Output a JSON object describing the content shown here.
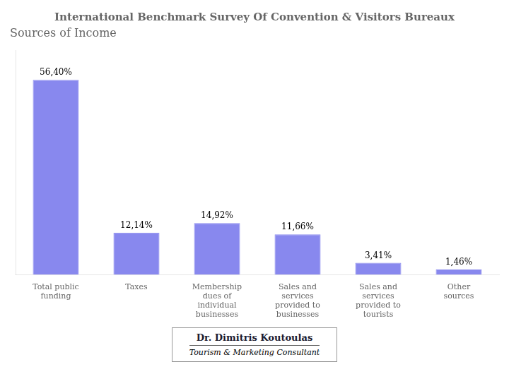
{
  "chart_data": {
    "type": "bar",
    "title": "International Benchmark Survey Of Convention & Visitors Bureaux",
    "subtitle": "Sources of Income",
    "categories": [
      "Total public\nfunding",
      "Taxes",
      "Membership\ndues of\nindividual\nbusinesses",
      "Sales and\nservices\nprovided to\nbusinesses",
      "Sales and\nservices\nprovided to\ntourists",
      "Other\nsources"
    ],
    "values": [
      56.4,
      12.14,
      14.92,
      11.66,
      3.41,
      1.46
    ],
    "value_labels": [
      "56,40%",
      "12,14%",
      "14,92%",
      "11,66%",
      "3,41%",
      "1,46%"
    ],
    "data_labels": true,
    "color": "#8888ee",
    "ylim": [
      0,
      65
    ],
    "grid": false,
    "legend": false,
    "tick_labels": "x",
    "annotations": [
      "Dr. Dimitris Koutoulas",
      "Tourism & Marketing Consultant"
    ]
  }
}
